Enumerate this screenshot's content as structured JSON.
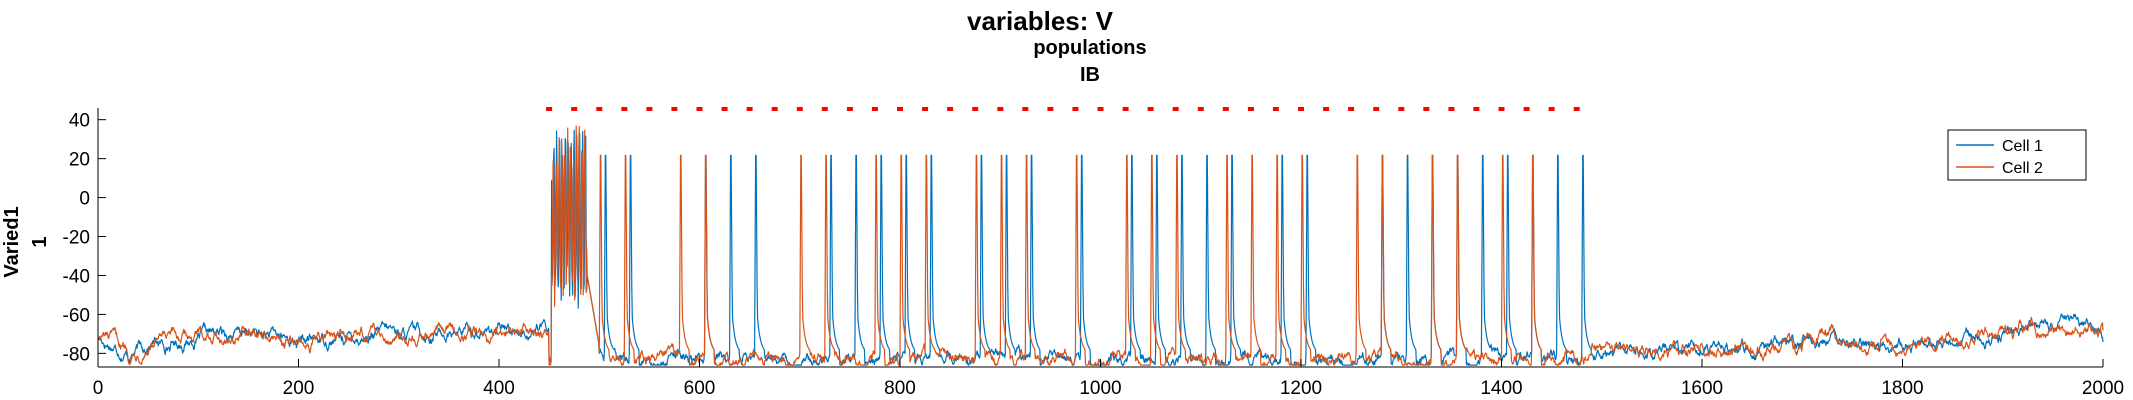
{
  "chart_data": {
    "type": "line",
    "title": "variables: V",
    "subtitle_lines": [
      "populations",
      "IB"
    ],
    "ylabel_lines": [
      "Varied1",
      "1"
    ],
    "xlabel": "",
    "xlim": [
      0,
      2000
    ],
    "ylim": [
      -87,
      46
    ],
    "xticks": [
      0,
      200,
      400,
      600,
      800,
      1000,
      1200,
      1400,
      1600,
      1800,
      2000
    ],
    "yticks": [
      40,
      20,
      0,
      -20,
      -40,
      -60,
      -80
    ],
    "grid": false,
    "legend_position": "top-right",
    "series": [
      {
        "name": "Cell 1",
        "color": "#0072BD",
        "spike_times": [
          455,
          460,
          465,
          470,
          475,
          480,
          485,
          505,
          530,
          605,
          630,
          655,
          730,
          755,
          780,
          805,
          830,
          880,
          905,
          930,
          980,
          1030,
          1055,
          1080,
          1105,
          1130,
          1180,
          1205,
          1280,
          1305,
          1330,
          1355,
          1380,
          1405,
          1430,
          1455,
          1480
        ]
      },
      {
        "name": "Cell 2",
        "color": "#D95319",
        "spike_times": [
          452,
          457,
          462,
          467,
          472,
          477,
          482,
          500,
          525,
          580,
          605,
          700,
          725,
          775,
          800,
          825,
          875,
          900,
          925,
          975,
          1025,
          1050,
          1075,
          1125,
          1150,
          1175,
          1200,
          1255,
          1280,
          1330,
          1355,
          1400,
          1430
        ]
      }
    ],
    "raster_times": [
      450,
      475,
      500,
      525,
      550,
      575,
      600,
      625,
      650,
      675,
      700,
      725,
      750,
      775,
      800,
      825,
      850,
      875,
      900,
      925,
      950,
      975,
      1000,
      1025,
      1050,
      1075,
      1100,
      1125,
      1150,
      1175,
      1200,
      1225,
      1250,
      1275,
      1300,
      1325,
      1350,
      1375,
      1400,
      1425,
      1450,
      1475
    ],
    "raster_color": "#FF0000"
  }
}
